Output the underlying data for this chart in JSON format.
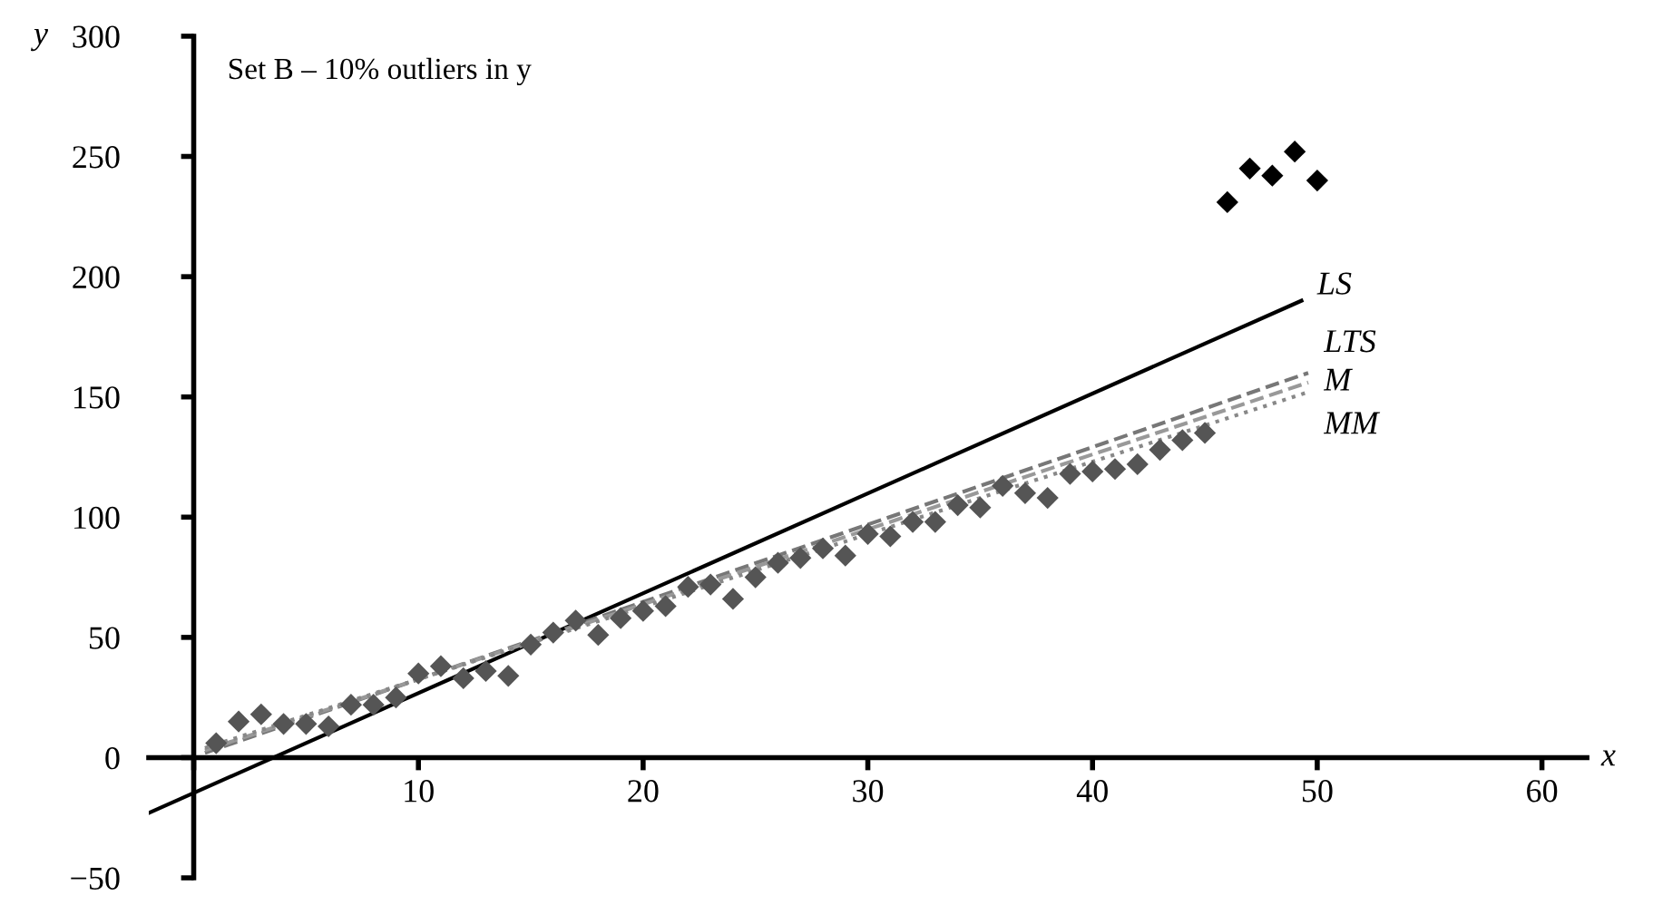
{
  "chart_data": {
    "type": "scatter",
    "title": "Set B – 10% outliers in y",
    "xlabel": "x",
    "ylabel": "y",
    "xlim": [
      -2,
      62
    ],
    "ylim": [
      -50,
      300
    ],
    "xticks": [
      {
        "value": 0,
        "label": null
      },
      10,
      20,
      30,
      40,
      50,
      60
    ],
    "yticks": [
      -50,
      0,
      50,
      100,
      150,
      200,
      250,
      300
    ],
    "grid": false,
    "series": [
      {
        "marker": "diamond",
        "color": "#555555",
        "x": [
          1,
          2,
          3,
          4,
          5,
          6,
          7,
          8,
          9,
          10,
          11,
          12,
          13,
          14,
          15,
          16,
          17,
          18,
          19,
          20,
          21,
          22,
          23,
          24,
          25,
          26,
          27,
          28,
          29,
          30,
          31,
          32,
          33,
          34,
          35,
          36,
          37,
          38,
          39,
          40,
          41,
          42,
          43,
          44,
          45
        ],
        "values": [
          6,
          15,
          18,
          14,
          14,
          13,
          22,
          22,
          25,
          35,
          38,
          33,
          36,
          34,
          47,
          52,
          57,
          51,
          58,
          61,
          63,
          71,
          72,
          66,
          75,
          81,
          83,
          87,
          84,
          93,
          92,
          98,
          98,
          105,
          104,
          113,
          110,
          108,
          118,
          119,
          120,
          122,
          128,
          132,
          135
        ]
      },
      {
        "marker": "diamond",
        "color": "#000000",
        "x": [
          46,
          47,
          48,
          49,
          50
        ],
        "values": [
          231,
          245,
          242,
          252,
          240
        ]
      },
      {
        "type": "line",
        "name": "LS",
        "color": "#000000",
        "line_style": "solid",
        "x": [
          -2,
          49.3
        ],
        "values": [
          -23,
          190
        ]
      },
      {
        "type": "line",
        "name": "LTS",
        "color": "#777777",
        "line_style": "dashed",
        "x": [
          0.5,
          49.6
        ],
        "values": [
          2,
          160
        ]
      },
      {
        "type": "line",
        "name": "M",
        "color": "#999999",
        "line_style": "dashed",
        "x": [
          0.5,
          49.6
        ],
        "values": [
          3,
          156
        ]
      },
      {
        "type": "line",
        "name": "MM",
        "color": "#888888",
        "line_style": "dotted",
        "x": [
          0.5,
          49.6
        ],
        "values": [
          4,
          152
        ]
      }
    ]
  }
}
